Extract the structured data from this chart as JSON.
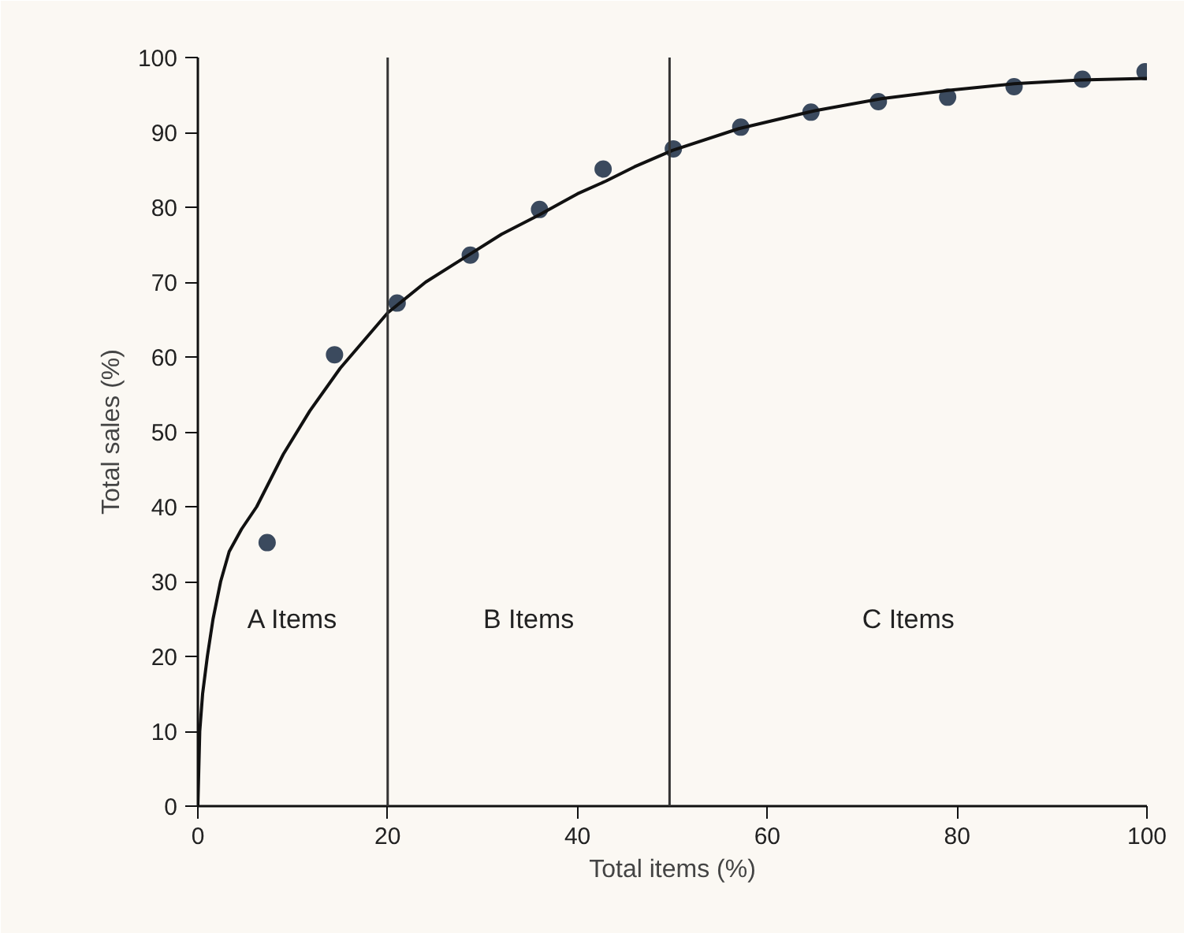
{
  "chart_data": {
    "type": "scatter",
    "xlabel": "Total items (%)",
    "ylabel": "Total sales (%)",
    "xlim": [
      0,
      100
    ],
    "ylim": [
      0,
      100
    ],
    "xticks": [
      0,
      20,
      40,
      60,
      80,
      100
    ],
    "yticks": [
      0,
      10,
      20,
      30,
      40,
      50,
      60,
      70,
      80,
      90,
      100
    ],
    "grid": false,
    "series": [
      {
        "color": "#3b4a5e",
        "marker": "circle",
        "x": [
          7.3,
          14.4,
          21.0,
          28.7,
          36.0,
          42.7,
          50.1,
          57.2,
          64.6,
          71.7,
          79.0,
          86.0,
          93.2,
          99.8
        ],
        "values": [
          35.2,
          60.3,
          67.2,
          73.6,
          79.7,
          85.1,
          87.8,
          90.7,
          92.7,
          94.1,
          94.7,
          96.1,
          97.1,
          98.1
        ]
      },
      {
        "type": "line",
        "color": "#111111",
        "line_style": "solid",
        "x": [
          0,
          0.2,
          0.5,
          1.0,
          1.6,
          2.4,
          3.3,
          4.6,
          6.2,
          9,
          11.8,
          15,
          20,
          24,
          28,
          32,
          36,
          40,
          43,
          46,
          50,
          57,
          65,
          72,
          79,
          86,
          93,
          100
        ],
        "values": [
          0,
          10,
          15,
          20,
          25,
          30,
          34,
          37,
          40,
          47,
          52.8,
          58.5,
          65.9,
          70,
          73.2,
          76.4,
          79.0,
          81.8,
          83.5,
          85.4,
          87.6,
          90.5,
          92.9,
          94.5,
          95.6,
          96.5,
          97.0,
          97.2
        ]
      }
    ],
    "ref_lines": [
      {
        "axis": "x",
        "value": 20,
        "color": "#333333"
      },
      {
        "axis": "x",
        "value": 49.7,
        "color": "#333333"
      }
    ],
    "annotations": [
      "A Items",
      "B Items",
      "C Items"
    ]
  }
}
